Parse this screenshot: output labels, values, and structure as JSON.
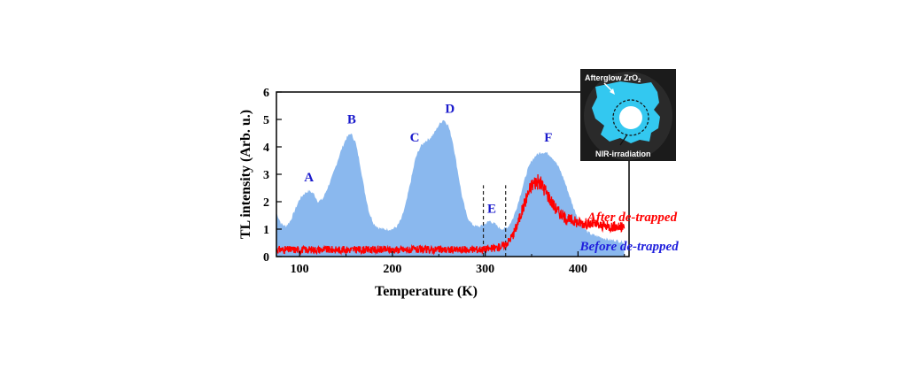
{
  "chart_data": {
    "type": "area",
    "xlabel": "Temperature (K)",
    "ylabel": "TL intensity (Arb. u.)",
    "xlim": [
      75,
      455
    ],
    "ylim": [
      0,
      6
    ],
    "xticks": [
      100,
      200,
      300,
      400
    ],
    "yticks": [
      0,
      1,
      2,
      3,
      4,
      5,
      6
    ],
    "grid": false,
    "series": [
      {
        "name": "Before de-trapped",
        "kind": "area",
        "color": "#8ab8ee",
        "x": [
          75,
          80,
          85,
          90,
          95,
          100,
          105,
          110,
          115,
          120,
          125,
          130,
          135,
          140,
          145,
          150,
          155,
          160,
          165,
          170,
          175,
          180,
          185,
          190,
          195,
          200,
          205,
          210,
          215,
          220,
          225,
          230,
          235,
          240,
          245,
          250,
          255,
          260,
          265,
          270,
          275,
          280,
          285,
          290,
          295,
          300,
          305,
          310,
          315,
          320,
          325,
          330,
          335,
          340,
          345,
          350,
          355,
          360,
          365,
          370,
          375,
          380,
          385,
          390,
          395,
          400,
          405,
          410,
          415,
          420,
          425,
          430,
          435,
          440,
          445,
          450
        ],
        "y": [
          1.6,
          1.2,
          1.1,
          1.3,
          1.7,
          2.1,
          2.3,
          2.4,
          2.3,
          2.0,
          2.1,
          2.5,
          2.9,
          3.4,
          3.9,
          4.3,
          4.5,
          4.2,
          3.4,
          2.4,
          1.6,
          1.2,
          1.05,
          1.0,
          1.0,
          1.0,
          1.1,
          1.4,
          2.0,
          2.8,
          3.6,
          4.0,
          4.2,
          4.3,
          4.5,
          4.8,
          5.0,
          4.8,
          4.2,
          3.2,
          2.2,
          1.5,
          1.2,
          1.1,
          1.1,
          1.2,
          1.3,
          1.2,
          1.05,
          1.0,
          1.1,
          1.4,
          1.9,
          2.5,
          3.1,
          3.5,
          3.7,
          3.8,
          3.8,
          3.7,
          3.5,
          3.2,
          2.8,
          2.3,
          1.8,
          1.4,
          1.1,
          0.9,
          0.8,
          0.75,
          0.7,
          0.65,
          0.6,
          0.6,
          0.55,
          0.55
        ]
      },
      {
        "name": "After de-trapped",
        "kind": "line",
        "color": "#ff0000",
        "x": [
          75,
          100,
          150,
          200,
          250,
          280,
          300,
          310,
          320,
          325,
          330,
          335,
          340,
          345,
          350,
          355,
          360,
          365,
          370,
          375,
          380,
          385,
          390,
          395,
          400,
          410,
          420,
          430,
          440,
          450
        ],
        "y": [
          0.25,
          0.25,
          0.25,
          0.25,
          0.25,
          0.25,
          0.27,
          0.3,
          0.4,
          0.55,
          0.8,
          1.2,
          1.7,
          2.2,
          2.6,
          2.75,
          2.65,
          2.4,
          2.1,
          1.8,
          1.6,
          1.45,
          1.35,
          1.3,
          1.25,
          1.2,
          1.15,
          1.1,
          1.1,
          1.05
        ]
      }
    ],
    "peak_labels": [
      {
        "text": "A",
        "x": 110,
        "y": 2.75
      },
      {
        "text": "B",
        "x": 156,
        "y": 4.85
      },
      {
        "text": "C",
        "x": 224,
        "y": 4.2
      },
      {
        "text": "D",
        "x": 262,
        "y": 5.25
      },
      {
        "text": "E",
        "x": 307,
        "y": 1.6
      },
      {
        "text": "F",
        "x": 368,
        "y": 4.2
      }
    ],
    "dashed_lines_x": [
      298,
      322
    ],
    "annotations": [
      {
        "text": "After de-trapped",
        "x": 410,
        "y": 1.8
      },
      {
        "text": "Before de-trapped",
        "x": 402,
        "y": 0.35
      }
    ],
    "colors": {
      "peak_label": "#1a1acc",
      "after": "#ff0000",
      "before_text": "#2020dd"
    }
  },
  "inset": {
    "top_label": "Afterglow ZrO",
    "top_label_sub": "2",
    "bottom_label": "NIR-irradiation",
    "colors": {
      "background": "#1b1b1b",
      "glow": "#33c8f0",
      "spot": "#ffffff"
    }
  }
}
